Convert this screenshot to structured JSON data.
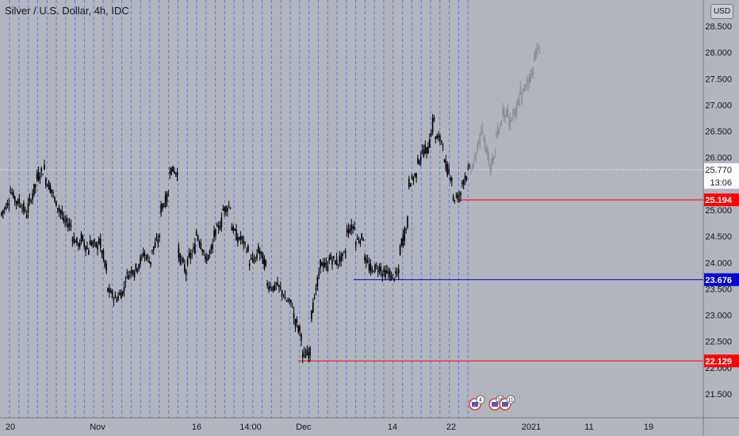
{
  "header": {
    "title": "Silver / U.S. Dollar, 4h, IDC",
    "currency": "USD"
  },
  "chart_data": {
    "type": "candlestick",
    "title": "Silver / U.S. Dollar, 4h, IDC",
    "ylim": [
      21.1,
      28.9
    ],
    "y_ticks": [
      "28.500",
      "28.000",
      "27.500",
      "27.000",
      "26.500",
      "26.000",
      "25.500",
      "25.000",
      "24.500",
      "24.000",
      "23.500",
      "23.000",
      "22.500",
      "22.000",
      "21.500"
    ],
    "x_ticks": [
      "20",
      "Nov",
      "16",
      "14:00",
      "Dec",
      "14",
      "22",
      "2021",
      "11",
      "19"
    ],
    "current_price": {
      "value": 25.77,
      "label": "25.770",
      "countdown": "13:06"
    },
    "price_lines": [
      {
        "value": 25.194,
        "label": "25.194",
        "color": "#ff0000"
      },
      {
        "value": 23.676,
        "label": "23.676",
        "color": "#0000cc"
      },
      {
        "value": 22.129,
        "label": "22.129",
        "color": "#ff0000"
      }
    ],
    "events": [
      {
        "label": "4"
      },
      {
        "label": "16"
      },
      {
        "label": "11"
      }
    ],
    "actual_path": [
      [
        24.9,
        25.2
      ],
      [
        25.4,
        25.1
      ],
      [
        25.2,
        24.9
      ],
      [
        25.0,
        25.5
      ],
      [
        25.6,
        25.8
      ],
      [
        25.6,
        25.3
      ],
      [
        25.2,
        24.9
      ],
      [
        24.8,
        24.7
      ],
      [
        24.5,
        24.3
      ],
      [
        24.5,
        24.2
      ],
      [
        24.4,
        24.3
      ],
      [
        24.5,
        23.8
      ],
      [
        23.5,
        23.3
      ],
      [
        23.3,
        23.5
      ],
      [
        23.7,
        23.9
      ],
      [
        23.8,
        24.1
      ],
      [
        24.2,
        24.0
      ],
      [
        24.2,
        24.5
      ],
      [
        25.0,
        25.3
      ],
      [
        25.8,
        25.7
      ],
      [
        24.2,
        23.8
      ],
      [
        24.0,
        24.3
      ],
      [
        24.6,
        24.2
      ],
      [
        24.0,
        24.3
      ],
      [
        24.5,
        24.8
      ],
      [
        25.0,
        25.1
      ],
      [
        24.7,
        24.4
      ],
      [
        24.5,
        24.2
      ],
      [
        24.0,
        24.1
      ],
      [
        24.3,
        23.9
      ],
      [
        23.6,
        23.5
      ],
      [
        23.6,
        23.4
      ],
      [
        23.3,
        23.2
      ],
      [
        23.0,
        22.6
      ],
      [
        22.2,
        22.3
      ],
      [
        23.0,
        23.8
      ],
      [
        24.0,
        23.9
      ],
      [
        24.1,
        24.0
      ],
      [
        24.0,
        24.2
      ],
      [
        24.6,
        24.7
      ],
      [
        24.4,
        24.5
      ],
      [
        24.1,
        23.8
      ],
      [
        23.9,
        23.9
      ],
      [
        23.8,
        23.8
      ],
      [
        23.7,
        23.8
      ],
      [
        24.2,
        24.8
      ],
      [
        25.5,
        25.7
      ],
      [
        25.9,
        26.2
      ],
      [
        26.0,
        26.8
      ],
      [
        26.4,
        26.3
      ],
      [
        25.9,
        25.6
      ],
      [
        25.2,
        25.3
      ],
      [
        25.5,
        25.8
      ]
    ],
    "projection_path": [
      [
        25.77,
        26.0
      ],
      [
        26.2,
        26.5
      ],
      [
        26.4,
        26.0
      ],
      [
        25.8,
        26.1
      ],
      [
        26.4,
        26.7
      ],
      [
        26.9,
        26.8
      ],
      [
        26.6,
        26.9
      ],
      [
        26.7,
        27.3
      ],
      [
        27.1,
        27.5
      ],
      [
        27.4,
        27.7
      ],
      [
        27.9,
        28.1
      ]
    ]
  }
}
